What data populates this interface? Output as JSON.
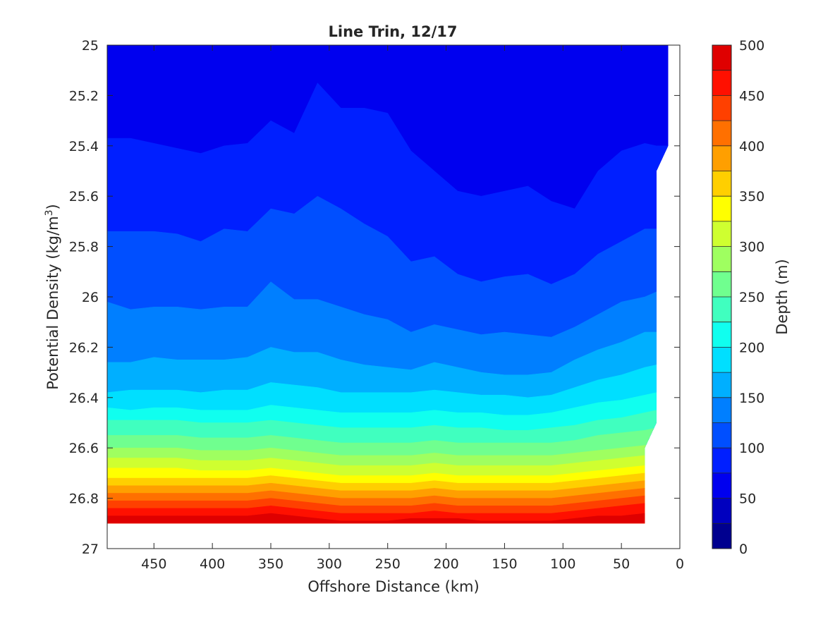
{
  "chart_data": {
    "type": "contour",
    "title": "Line Trin, 12/17",
    "xlabel": "Offshore Distance (km)",
    "ylabel_main": "Potential Density (kg/m",
    "ylabel_sup": "3",
    "ylabel_close": ")",
    "colorbar_label": "Depth (m)",
    "xlim": [
      490,
      0
    ],
    "ylim": [
      25,
      27
    ],
    "x_reversed": true,
    "y_reversed": true,
    "x_ticks": [
      450,
      400,
      350,
      300,
      250,
      200,
      150,
      100,
      50,
      0
    ],
    "y_ticks": [
      25,
      25.2,
      25.4,
      25.6,
      25.8,
      26,
      26.2,
      26.4,
      26.6,
      26.8,
      27
    ],
    "y_tick_labels": [
      "25",
      "25.2",
      "25.4",
      "25.6",
      "25.8",
      "26",
      "26.2",
      "26.4",
      "26.6",
      "26.8",
      "27"
    ],
    "colorbar": {
      "levels": [
        0,
        25,
        50,
        75,
        100,
        125,
        150,
        175,
        200,
        225,
        250,
        275,
        300,
        325,
        350,
        375,
        400,
        425,
        450,
        475,
        500
      ],
      "tick_values": [
        0,
        50,
        100,
        150,
        200,
        250,
        300,
        350,
        400,
        450,
        500
      ],
      "colors": [
        "#00008f",
        "#0000bf",
        "#0000ef",
        "#001fff",
        "#004fff",
        "#007fff",
        "#00afff",
        "#00dfff",
        "#10ffef",
        "#40ffbf",
        "#70ff8f",
        "#9fff60",
        "#cfff30",
        "#ffff00",
        "#ffcf00",
        "#ff9f00",
        "#ff7000",
        "#ff4000",
        "#ff1000",
        "#df0000",
        "#af0000"
      ]
    },
    "depth_contours": {
      "x": [
        490,
        470,
        450,
        430,
        410,
        390,
        370,
        350,
        330,
        310,
        290,
        270,
        250,
        230,
        210,
        190,
        170,
        150,
        130,
        110,
        90,
        70,
        50,
        30,
        20
      ],
      "levels": [
        {
          "depth": 25,
          "density": [
            25.0,
            25.0,
            25.0,
            25.0,
            25.0,
            25.0,
            25.0,
            25.0,
            25.0,
            25.0,
            25.0,
            25.0,
            25.0,
            25.0,
            25.0,
            25.0,
            25.0,
            25.0,
            25.0,
            25.0,
            25.0,
            25.0,
            25.0,
            25.0,
            25.0
          ]
        },
        {
          "depth": 50,
          "density": [
            25.0,
            25.0,
            25.0,
            25.0,
            25.0,
            25.0,
            25.0,
            25.0,
            25.0,
            25.0,
            25.0,
            25.0,
            25.0,
            25.0,
            25.0,
            25.0,
            25.0,
            25.0,
            25.0,
            25.0,
            25.0,
            25.0,
            25.0,
            25.0,
            25.0
          ]
        },
        {
          "depth": 75,
          "density": [
            25.37,
            25.37,
            25.39,
            25.41,
            25.43,
            25.4,
            25.39,
            25.3,
            25.35,
            25.15,
            25.25,
            25.25,
            25.27,
            25.42,
            25.5,
            25.58,
            25.6,
            25.58,
            25.56,
            25.62,
            25.65,
            25.5,
            25.42,
            25.39,
            25.4
          ]
        },
        {
          "depth": 100,
          "density": [
            25.74,
            25.74,
            25.74,
            25.75,
            25.78,
            25.73,
            25.74,
            25.65,
            25.67,
            25.6,
            25.65,
            25.71,
            25.76,
            25.86,
            25.84,
            25.91,
            25.94,
            25.92,
            25.91,
            25.95,
            25.91,
            25.83,
            25.78,
            25.73,
            25.73
          ]
        },
        {
          "depth": 125,
          "density": [
            26.02,
            26.05,
            26.04,
            26.04,
            26.05,
            26.04,
            26.04,
            25.94,
            26.01,
            26.01,
            26.04,
            26.07,
            26.09,
            26.14,
            26.11,
            26.13,
            26.15,
            26.14,
            26.15,
            26.16,
            26.12,
            26.07,
            26.02,
            26.0,
            25.98
          ]
        },
        {
          "depth": 150,
          "density": [
            26.26,
            26.26,
            26.24,
            26.25,
            26.25,
            26.25,
            26.24,
            26.2,
            26.22,
            26.22,
            26.25,
            26.27,
            26.28,
            26.29,
            26.26,
            26.28,
            26.3,
            26.31,
            26.31,
            26.3,
            26.25,
            26.21,
            26.18,
            26.14,
            26.14
          ]
        },
        {
          "depth": 175,
          "density": [
            26.38,
            26.37,
            26.37,
            26.37,
            26.38,
            26.37,
            26.37,
            26.34,
            26.35,
            26.36,
            26.38,
            26.38,
            26.38,
            26.38,
            26.37,
            26.38,
            26.39,
            26.39,
            26.4,
            26.39,
            26.36,
            26.33,
            26.31,
            26.28,
            26.27
          ]
        },
        {
          "depth": 200,
          "density": [
            26.44,
            26.45,
            26.44,
            26.44,
            26.45,
            26.45,
            26.45,
            26.43,
            26.44,
            26.45,
            26.46,
            26.46,
            26.46,
            26.46,
            26.45,
            26.46,
            26.46,
            26.47,
            26.47,
            26.46,
            26.44,
            26.42,
            26.41,
            26.39,
            26.38
          ]
        },
        {
          "depth": 225,
          "density": [
            26.49,
            26.49,
            26.49,
            26.49,
            26.5,
            26.5,
            26.5,
            26.49,
            26.5,
            26.51,
            26.52,
            26.52,
            26.52,
            26.52,
            26.51,
            26.52,
            26.52,
            26.53,
            26.53,
            26.52,
            26.51,
            26.49,
            26.48,
            26.46,
            26.45
          ]
        },
        {
          "depth": 250,
          "density": [
            26.55,
            26.55,
            26.55,
            26.55,
            26.56,
            26.56,
            26.56,
            26.55,
            26.56,
            26.57,
            26.58,
            26.58,
            26.58,
            26.58,
            26.57,
            26.58,
            26.58,
            26.58,
            26.58,
            26.58,
            26.57,
            26.55,
            26.54,
            26.53,
            26.52
          ]
        },
        {
          "depth": 275,
          "density": [
            26.6,
            26.6,
            26.6,
            26.6,
            26.61,
            26.61,
            26.61,
            26.6,
            26.61,
            26.62,
            26.63,
            26.63,
            26.63,
            26.63,
            26.62,
            26.63,
            26.63,
            26.63,
            26.63,
            26.63,
            26.62,
            26.61,
            26.6,
            26.59,
            26.58
          ]
        },
        {
          "depth": 300,
          "density": [
            26.64,
            26.64,
            26.64,
            26.64,
            26.65,
            26.65,
            26.65,
            26.64,
            26.65,
            26.66,
            26.67,
            26.67,
            26.67,
            26.67,
            26.66,
            26.67,
            26.67,
            26.67,
            26.67,
            26.67,
            26.66,
            26.65,
            26.64,
            26.63,
            26.63
          ]
        },
        {
          "depth": 325,
          "density": [
            26.68,
            26.68,
            26.68,
            26.68,
            26.69,
            26.69,
            26.69,
            26.68,
            26.69,
            26.7,
            26.71,
            26.71,
            26.71,
            26.71,
            26.7,
            26.71,
            26.71,
            26.71,
            26.71,
            26.71,
            26.7,
            26.69,
            26.68,
            26.67,
            26.67
          ]
        },
        {
          "depth": 350,
          "density": [
            26.72,
            26.72,
            26.72,
            26.72,
            26.72,
            26.72,
            26.72,
            26.71,
            26.72,
            26.73,
            26.74,
            26.74,
            26.74,
            26.74,
            26.73,
            26.74,
            26.74,
            26.74,
            26.74,
            26.74,
            26.73,
            26.72,
            26.71,
            26.7,
            26.7
          ]
        },
        {
          "depth": 375,
          "density": [
            26.75,
            26.75,
            26.75,
            26.75,
            26.75,
            26.75,
            26.75,
            26.74,
            26.75,
            26.76,
            26.77,
            26.77,
            26.77,
            26.77,
            26.76,
            26.77,
            26.77,
            26.77,
            26.77,
            26.77,
            26.76,
            26.75,
            26.74,
            26.73,
            26.73
          ]
        },
        {
          "depth": 400,
          "density": [
            26.78,
            26.78,
            26.78,
            26.78,
            26.78,
            26.78,
            26.78,
            26.77,
            26.78,
            26.79,
            26.8,
            26.8,
            26.8,
            26.8,
            26.79,
            26.8,
            26.8,
            26.8,
            26.8,
            26.8,
            26.79,
            26.78,
            26.77,
            26.76,
            26.76
          ]
        },
        {
          "depth": 425,
          "density": [
            26.81,
            26.81,
            26.81,
            26.81,
            26.81,
            26.81,
            26.81,
            26.8,
            26.81,
            26.82,
            26.83,
            26.83,
            26.83,
            26.83,
            26.82,
            26.83,
            26.83,
            26.83,
            26.83,
            26.83,
            26.82,
            26.81,
            26.8,
            26.79,
            26.79
          ]
        },
        {
          "depth": 450,
          "density": [
            26.84,
            26.84,
            26.84,
            26.84,
            26.84,
            26.84,
            26.84,
            26.83,
            26.84,
            26.85,
            26.86,
            26.86,
            26.86,
            26.86,
            26.85,
            26.86,
            26.86,
            26.86,
            26.86,
            26.86,
            26.85,
            26.84,
            26.83,
            26.82,
            26.82
          ]
        },
        {
          "depth": 475,
          "density": [
            26.87,
            26.87,
            26.87,
            26.87,
            26.87,
            26.87,
            26.87,
            26.86,
            26.87,
            26.88,
            26.89,
            26.89,
            26.89,
            26.88,
            26.88,
            26.88,
            26.89,
            26.89,
            26.89,
            26.89,
            26.88,
            26.87,
            26.87,
            26.86,
            26.86
          ]
        }
      ]
    },
    "data_domain": {
      "bottom_density": 26.9,
      "top_density": 25.0,
      "right_edge": [
        [
          490,
          26.9
        ],
        [
          30,
          26.9
        ],
        [
          30,
          26.6
        ],
        [
          20,
          26.5
        ],
        [
          20,
          25.5
        ],
        [
          10,
          25.4
        ],
        [
          10,
          25.0
        ],
        [
          490,
          25.0
        ]
      ]
    }
  }
}
